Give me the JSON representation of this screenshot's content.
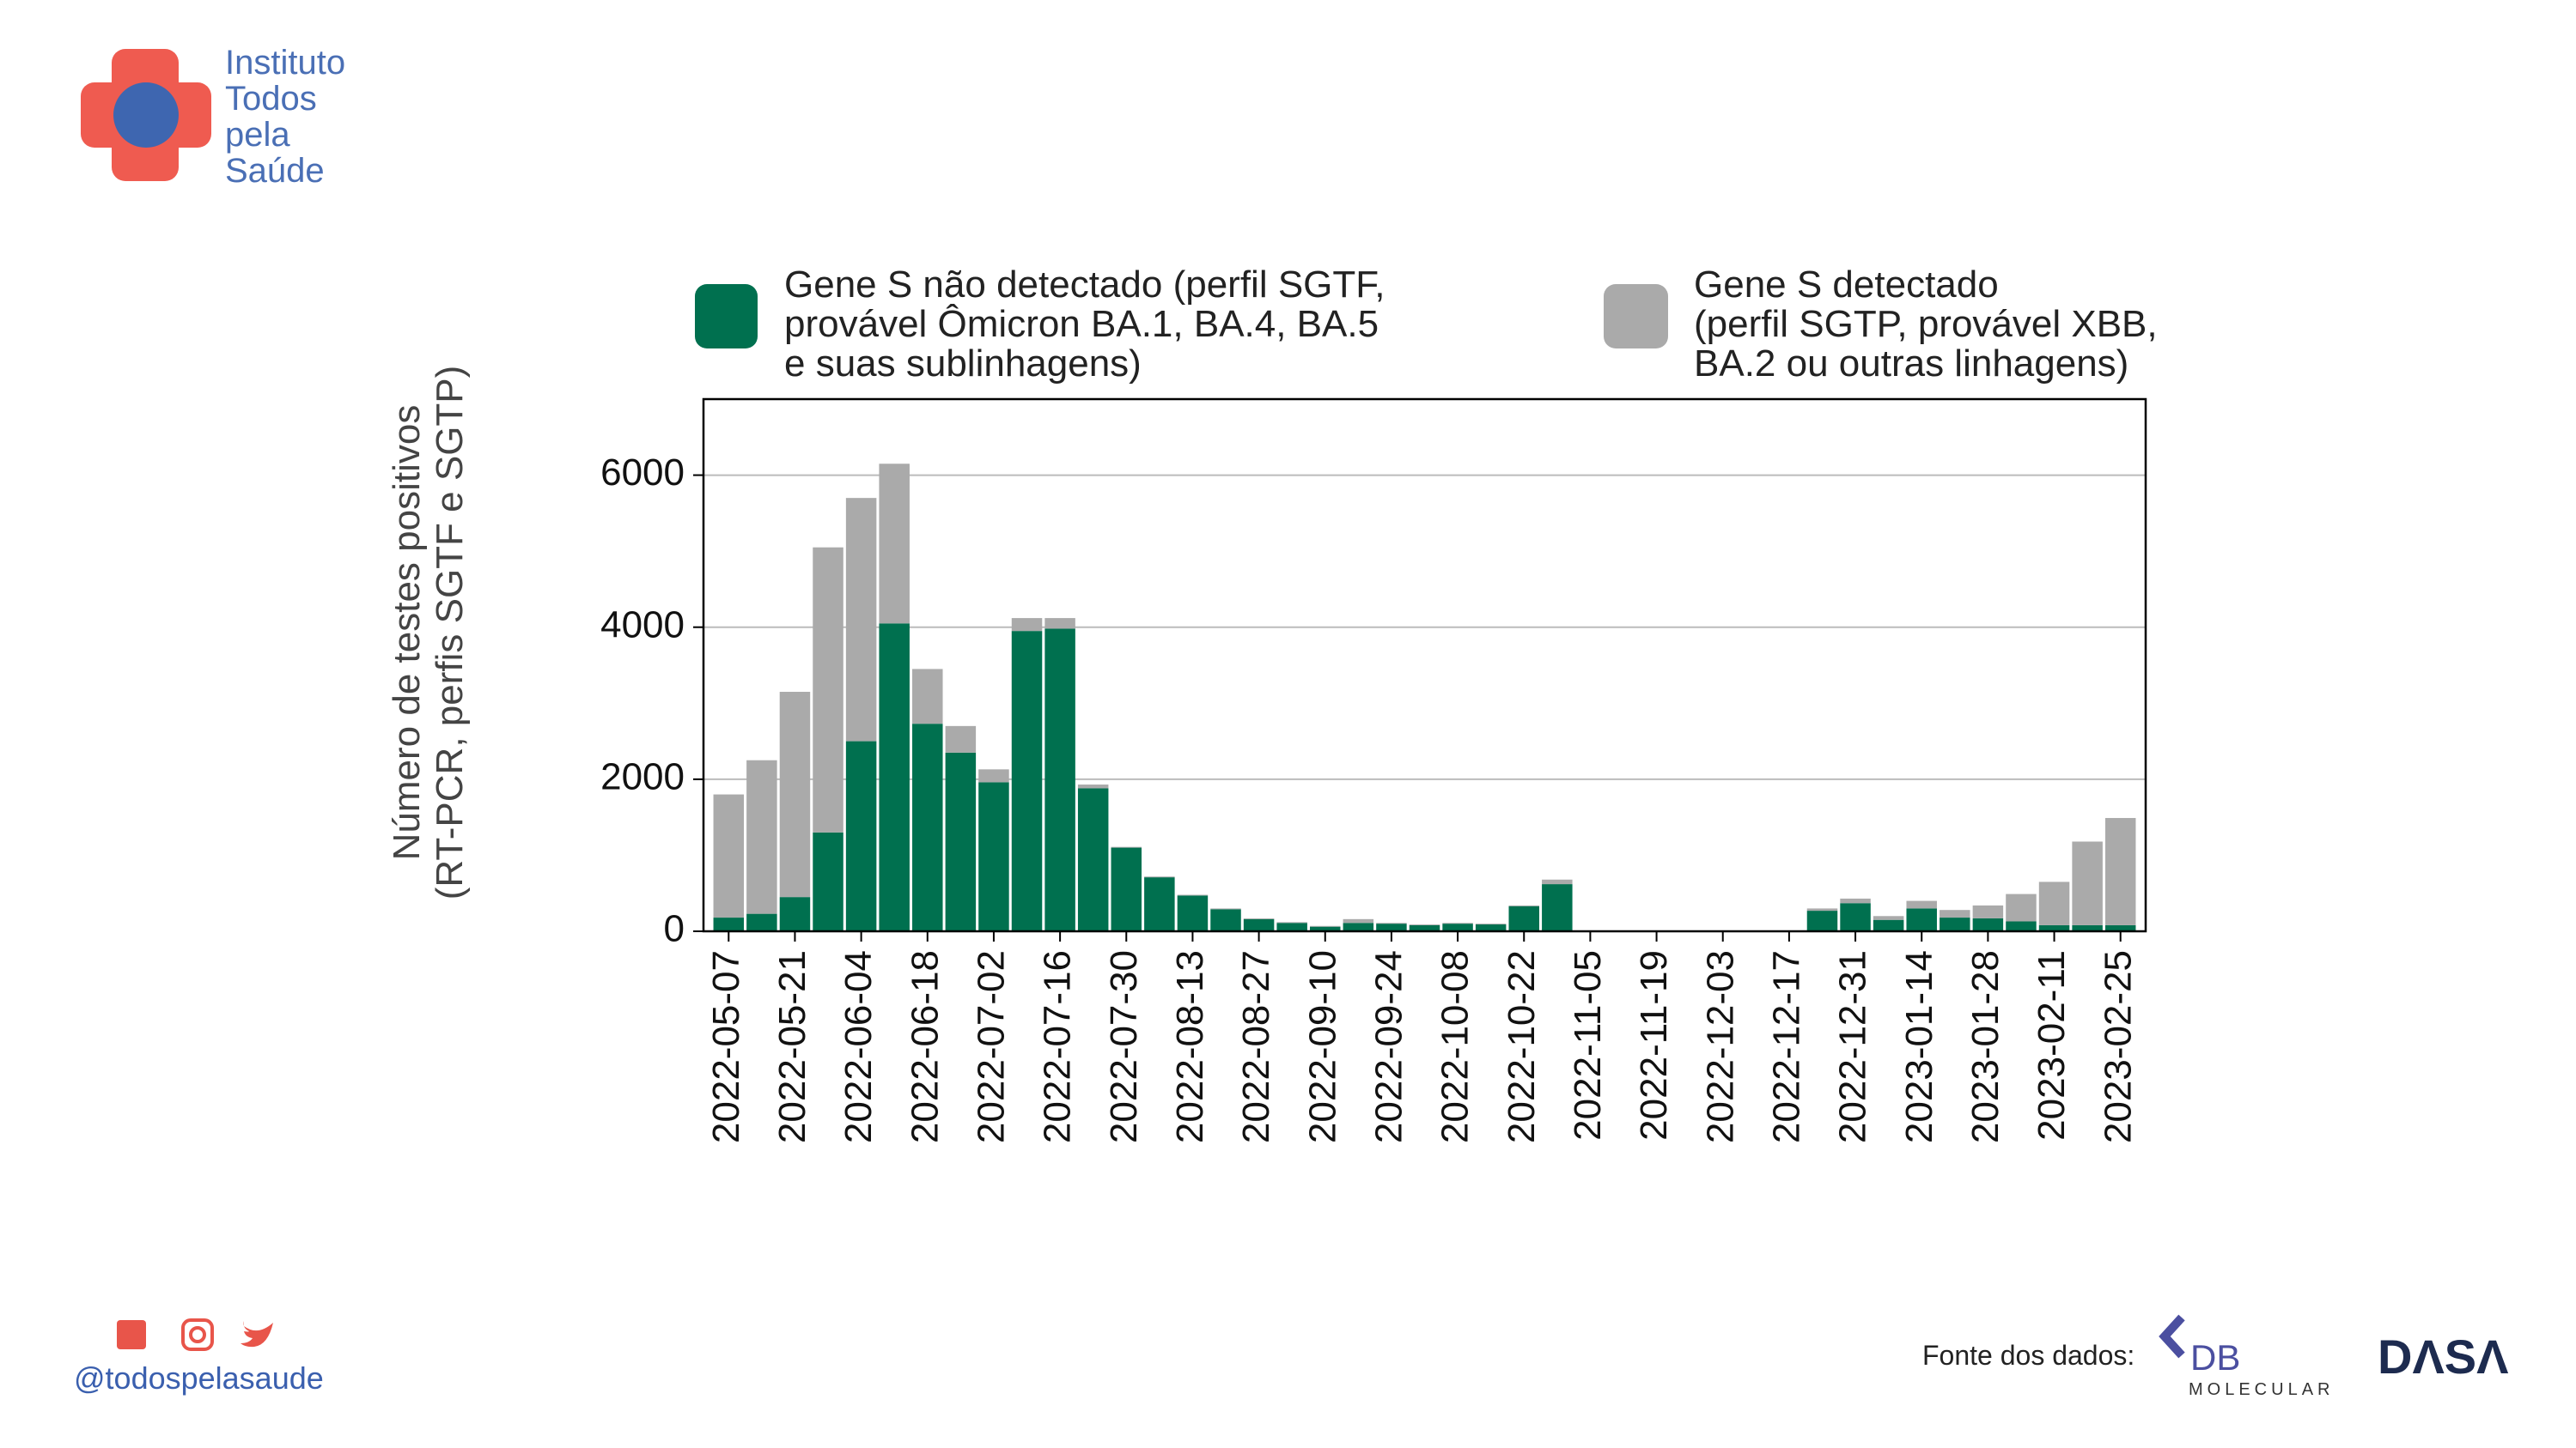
{
  "header": {
    "logo_text": "Instituto\nTodos\npela\nSaúde"
  },
  "footer": {
    "handle": "@todospelasaude",
    "source_label": "Fonte dos dados:",
    "source_1": "DB",
    "source_1_sub": "MOLECULAR",
    "source_2": "DΛSΛ"
  },
  "chart_data": {
    "type": "stacked_bar",
    "y_label": "Número de testes positivos\n(RT-PCR, perfis SGTF e SGTP)",
    "categories": [
      "2022-05-07",
      null,
      "2022-05-21",
      null,
      "2022-06-04",
      null,
      "2022-06-18",
      null,
      "2022-07-02",
      null,
      "2022-07-16",
      null,
      "2022-07-30",
      null,
      "2022-08-13",
      null,
      "2022-08-27",
      null,
      "2022-09-10",
      null,
      "2022-09-24",
      null,
      "2022-10-08",
      null,
      "2022-10-22",
      null,
      "2022-11-05",
      null,
      "2022-11-19",
      null,
      "2022-12-03",
      null,
      "2022-12-17",
      null,
      "2022-12-31",
      null,
      "2023-01-14",
      null,
      "2023-01-28",
      null,
      "2023-02-11",
      null,
      "2023-02-25"
    ],
    "series": [
      {
        "name": "Gene S não detectado (perfil SGTF,\nprovável Ômicron BA.1, BA.4, BA.5\ne suas sublinhagens)",
        "color": "#00704f",
        "values": [
          180,
          230,
          450,
          1300,
          2500,
          4050,
          2730,
          2350,
          1960,
          3950,
          3980,
          1880,
          1100,
          710,
          470,
          290,
          160,
          110,
          60,
          110,
          100,
          80,
          100,
          90,
          330,
          620,
          10,
          10,
          10,
          10,
          10,
          10,
          10,
          270,
          370,
          150,
          300,
          180,
          170,
          130,
          80,
          80,
          80
        ]
      },
      {
        "name": "Gene S detectado\n(perfil SGTP, provável XBB,\nBA.2 ou outras linhagens)",
        "color": "#aaaaaa",
        "values": [
          1620,
          2020,
          2700,
          3750,
          3200,
          2100,
          720,
          350,
          170,
          170,
          140,
          50,
          10,
          10,
          10,
          10,
          10,
          10,
          10,
          50,
          10,
          10,
          10,
          10,
          10,
          60,
          0,
          0,
          0,
          0,
          0,
          0,
          0,
          30,
          60,
          50,
          100,
          100,
          170,
          360,
          570,
          1100,
          1410
        ]
      }
    ],
    "ylim": [
      0,
      7000
    ],
    "yticks": [
      0,
      2000,
      4000,
      6000
    ],
    "grid": true
  }
}
